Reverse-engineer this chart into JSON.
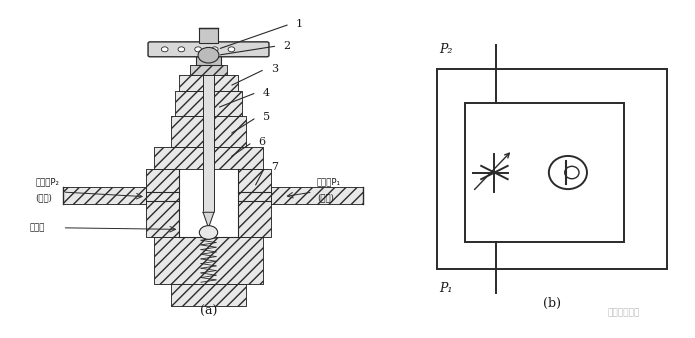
{
  "bg_color": "#ffffff",
  "left_label": "(a)",
  "right_label": "(b)",
  "watermark": "機械液压论坛",
  "left_labels": {
    "outlet": "出油口P₂",
    "outlet_sub": "(反进)",
    "inlet": "进油口P₁",
    "inlet_sub": "(反出)",
    "throttle": "节流口"
  },
  "right_labels": {
    "P2": "P₂",
    "P1": "P₁"
  },
  "line_color": "#2a2a2a",
  "text_color": "#1a1a1a",
  "hatch_lw": 0.4
}
